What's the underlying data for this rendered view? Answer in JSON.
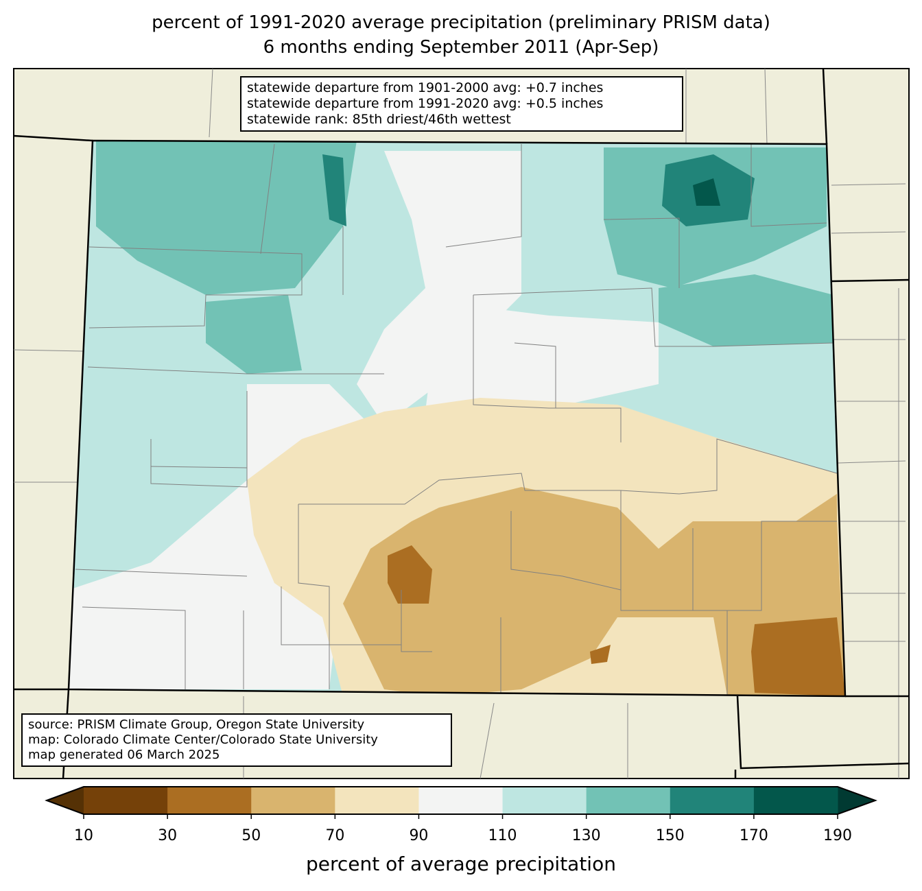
{
  "title": {
    "line1": "percent of 1991-2020 average precipitation (preliminary PRISM data)",
    "line2": "6 months ending September 2011 (Apr-Sep)"
  },
  "stats_box": [
    "statewide departure from 1901-2000 avg: +0.7 inches",
    "statewide departure from 1991-2020 avg: +0.5 inches",
    "statewide rank: 85th driest/46th wettest"
  ],
  "source_box": [
    "source: PRISM Climate Group, Oregon State University",
    "map: Colorado Climate Center/Colorado State University",
    "map generated 06 March 2025"
  ],
  "colorbar": {
    "label": "percent of average precipitation",
    "ticks": [
      "10",
      "30",
      "50",
      "70",
      "90",
      "110",
      "130",
      "150",
      "170",
      "190"
    ],
    "colors": [
      "#754109",
      "#ab6e22",
      "#d9b46e",
      "#f3e4bd",
      "#f3f4f3",
      "#bee6e1",
      "#72c2b5",
      "#218479",
      "#03574b"
    ],
    "extend_low_color": "#553105",
    "extend_high_color": "#013a32"
  },
  "map_colors": {
    "background": "#efeedb",
    "county_lines": "#808080",
    "state_lines": "#000000"
  }
}
